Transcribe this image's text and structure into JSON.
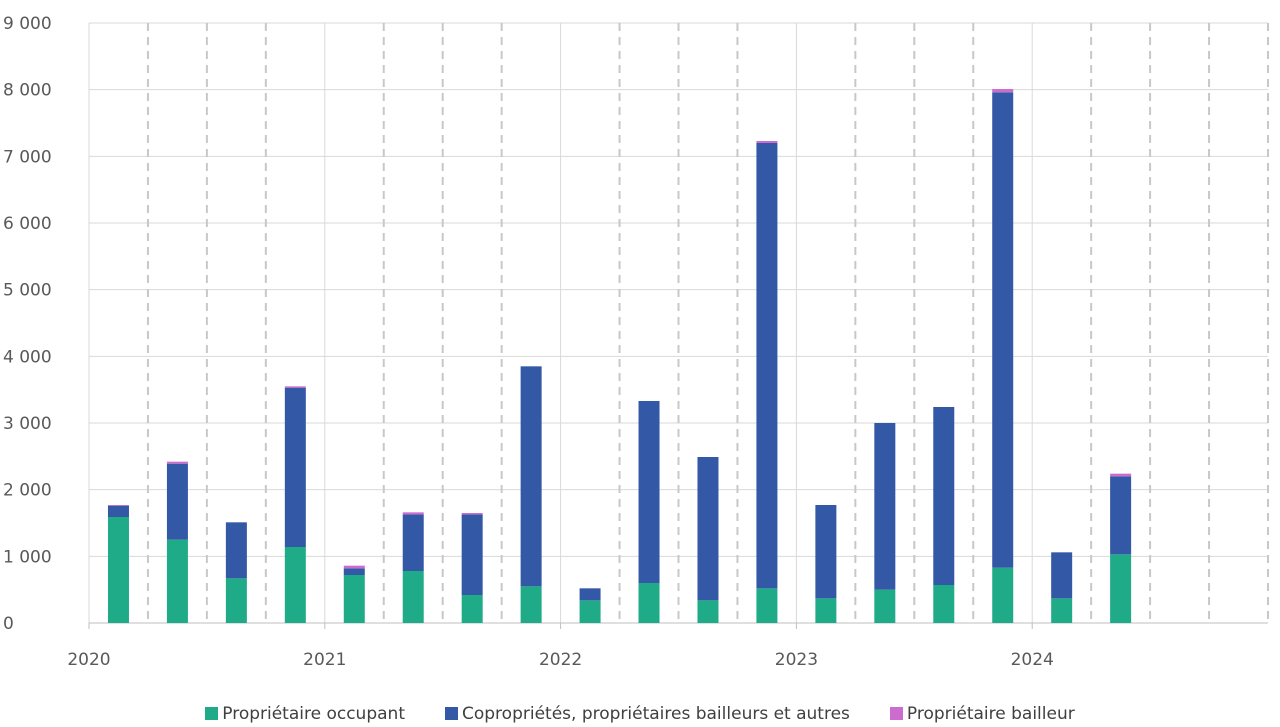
{
  "chart_data": {
    "type": "bar",
    "stacked": true,
    "x_tick_labels": [
      "2020",
      "2021",
      "2022",
      "2023",
      "2024"
    ],
    "ylim": [
      0,
      9000
    ],
    "y_tick_labels": [
      "0",
      "1 000",
      "2 000",
      "3 000",
      "4 000",
      "5 000",
      "6 000",
      "7 000",
      "8 000",
      "9 000"
    ],
    "grid": "horizontal solid, vertical dashed per quarter",
    "legend_position": "bottom",
    "categories": [
      "T1 2020",
      "T2 2020",
      "T3 2020",
      "T4 2020",
      "T1 2021",
      "T2 2021",
      "T3 2021",
      "T4 2021",
      "T1 2022",
      "T2 2022",
      "T3 2022",
      "T4 2022",
      "T1 2023",
      "T2 2023",
      "T3 2023",
      "T4 2023",
      "T1 2024",
      "T2 2024",
      "T3 2024",
      "T4 2024"
    ],
    "series": [
      {
        "name": "Propriétaire occupant",
        "color": "#20ab88",
        "values": [
          1590,
          1250,
          670,
          1140,
          720,
          780,
          420,
          550,
          340,
          600,
          340,
          520,
          370,
          500,
          570,
          830,
          370,
          1030,
          null,
          null
        ]
      },
      {
        "name": "Copropriétés, propriétaires bailleurs et autres",
        "color": "#3358a6",
        "values": [
          170,
          1140,
          840,
          2390,
          100,
          850,
          1210,
          3300,
          180,
          2730,
          2150,
          6680,
          1400,
          2500,
          2670,
          7130,
          690,
          1170,
          null,
          null
        ]
      },
      {
        "name": "Propriétaire bailleur",
        "color": "#cc6ccf",
        "values": [
          10,
          30,
          0,
          20,
          40,
          30,
          20,
          0,
          0,
          0,
          0,
          30,
          0,
          0,
          0,
          50,
          0,
          40,
          null,
          null
        ]
      }
    ]
  }
}
